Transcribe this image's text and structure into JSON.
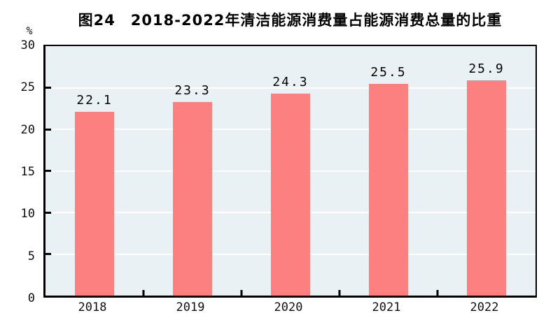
{
  "page": {
    "background_color": "#ffffff"
  },
  "chart_data": {
    "type": "bar",
    "title": "图24　2018-2022年清洁能源消费量占能源消费总量的比重",
    "unit_label": "%",
    "categories": [
      "2018",
      "2019",
      "2020",
      "2021",
      "2022"
    ],
    "values": [
      22.1,
      23.3,
      24.3,
      25.5,
      25.9
    ],
    "value_labels": [
      "22.1",
      "23.3",
      "24.3",
      "25.5",
      "25.9"
    ],
    "xlabel": "",
    "ylabel": "%",
    "ylim": [
      0,
      30
    ],
    "yticks": [
      0,
      5,
      10,
      15,
      20,
      25,
      30
    ],
    "grid": "horizontal-white-lines-every-5",
    "legend": "none",
    "colors": {
      "bar": "#fc8080",
      "plot_background": "#eaf1f5",
      "axis": "#000000",
      "gridline": "#ffffff",
      "text": "#000000"
    }
  }
}
